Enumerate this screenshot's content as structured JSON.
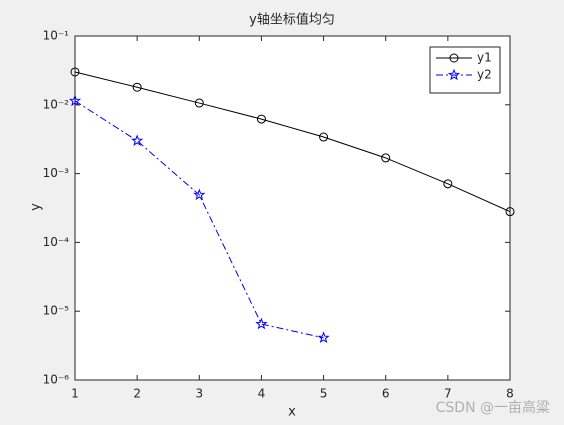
{
  "chart_data": {
    "type": "line",
    "title": "y轴坐标值均匀",
    "x_label": "x",
    "y_label": "y",
    "x": [
      1,
      2,
      3,
      4,
      5,
      6,
      7,
      8
    ],
    "series": [
      {
        "name": "y1",
        "color": "#000000",
        "line_style": "-",
        "marker": "circle",
        "values": [
          0.03,
          0.018,
          0.0106,
          0.0062,
          0.0034,
          0.00169,
          0.00071,
          0.00028
        ]
      },
      {
        "name": "y2",
        "color": "#0000ff",
        "line_style": "-.",
        "marker": "pentagram",
        "values": [
          0.0114,
          0.003,
          0.00049,
          6.5e-06,
          4.1e-06,
          null,
          null,
          null
        ]
      }
    ],
    "xlim": [
      1,
      8
    ],
    "xticks": [
      1,
      2,
      3,
      4,
      5,
      6,
      7,
      8
    ],
    "ylim": [
      1e-06,
      0.1
    ],
    "y_scale": "log",
    "yticks": [
      {
        "value": 1e-06,
        "label": "10⁻⁶"
      },
      {
        "value": 1e-05,
        "label": "10⁻⁵"
      },
      {
        "value": 0.0001,
        "label": "10⁻⁴"
      },
      {
        "value": 0.001,
        "label": "10⁻³"
      },
      {
        "value": 0.01,
        "label": "10⁻²"
      },
      {
        "value": 0.1,
        "label": "10⁻¹"
      }
    ],
    "grid": false,
    "legend_position": "northeast",
    "watermark": "CSDN @一亩高粱"
  }
}
